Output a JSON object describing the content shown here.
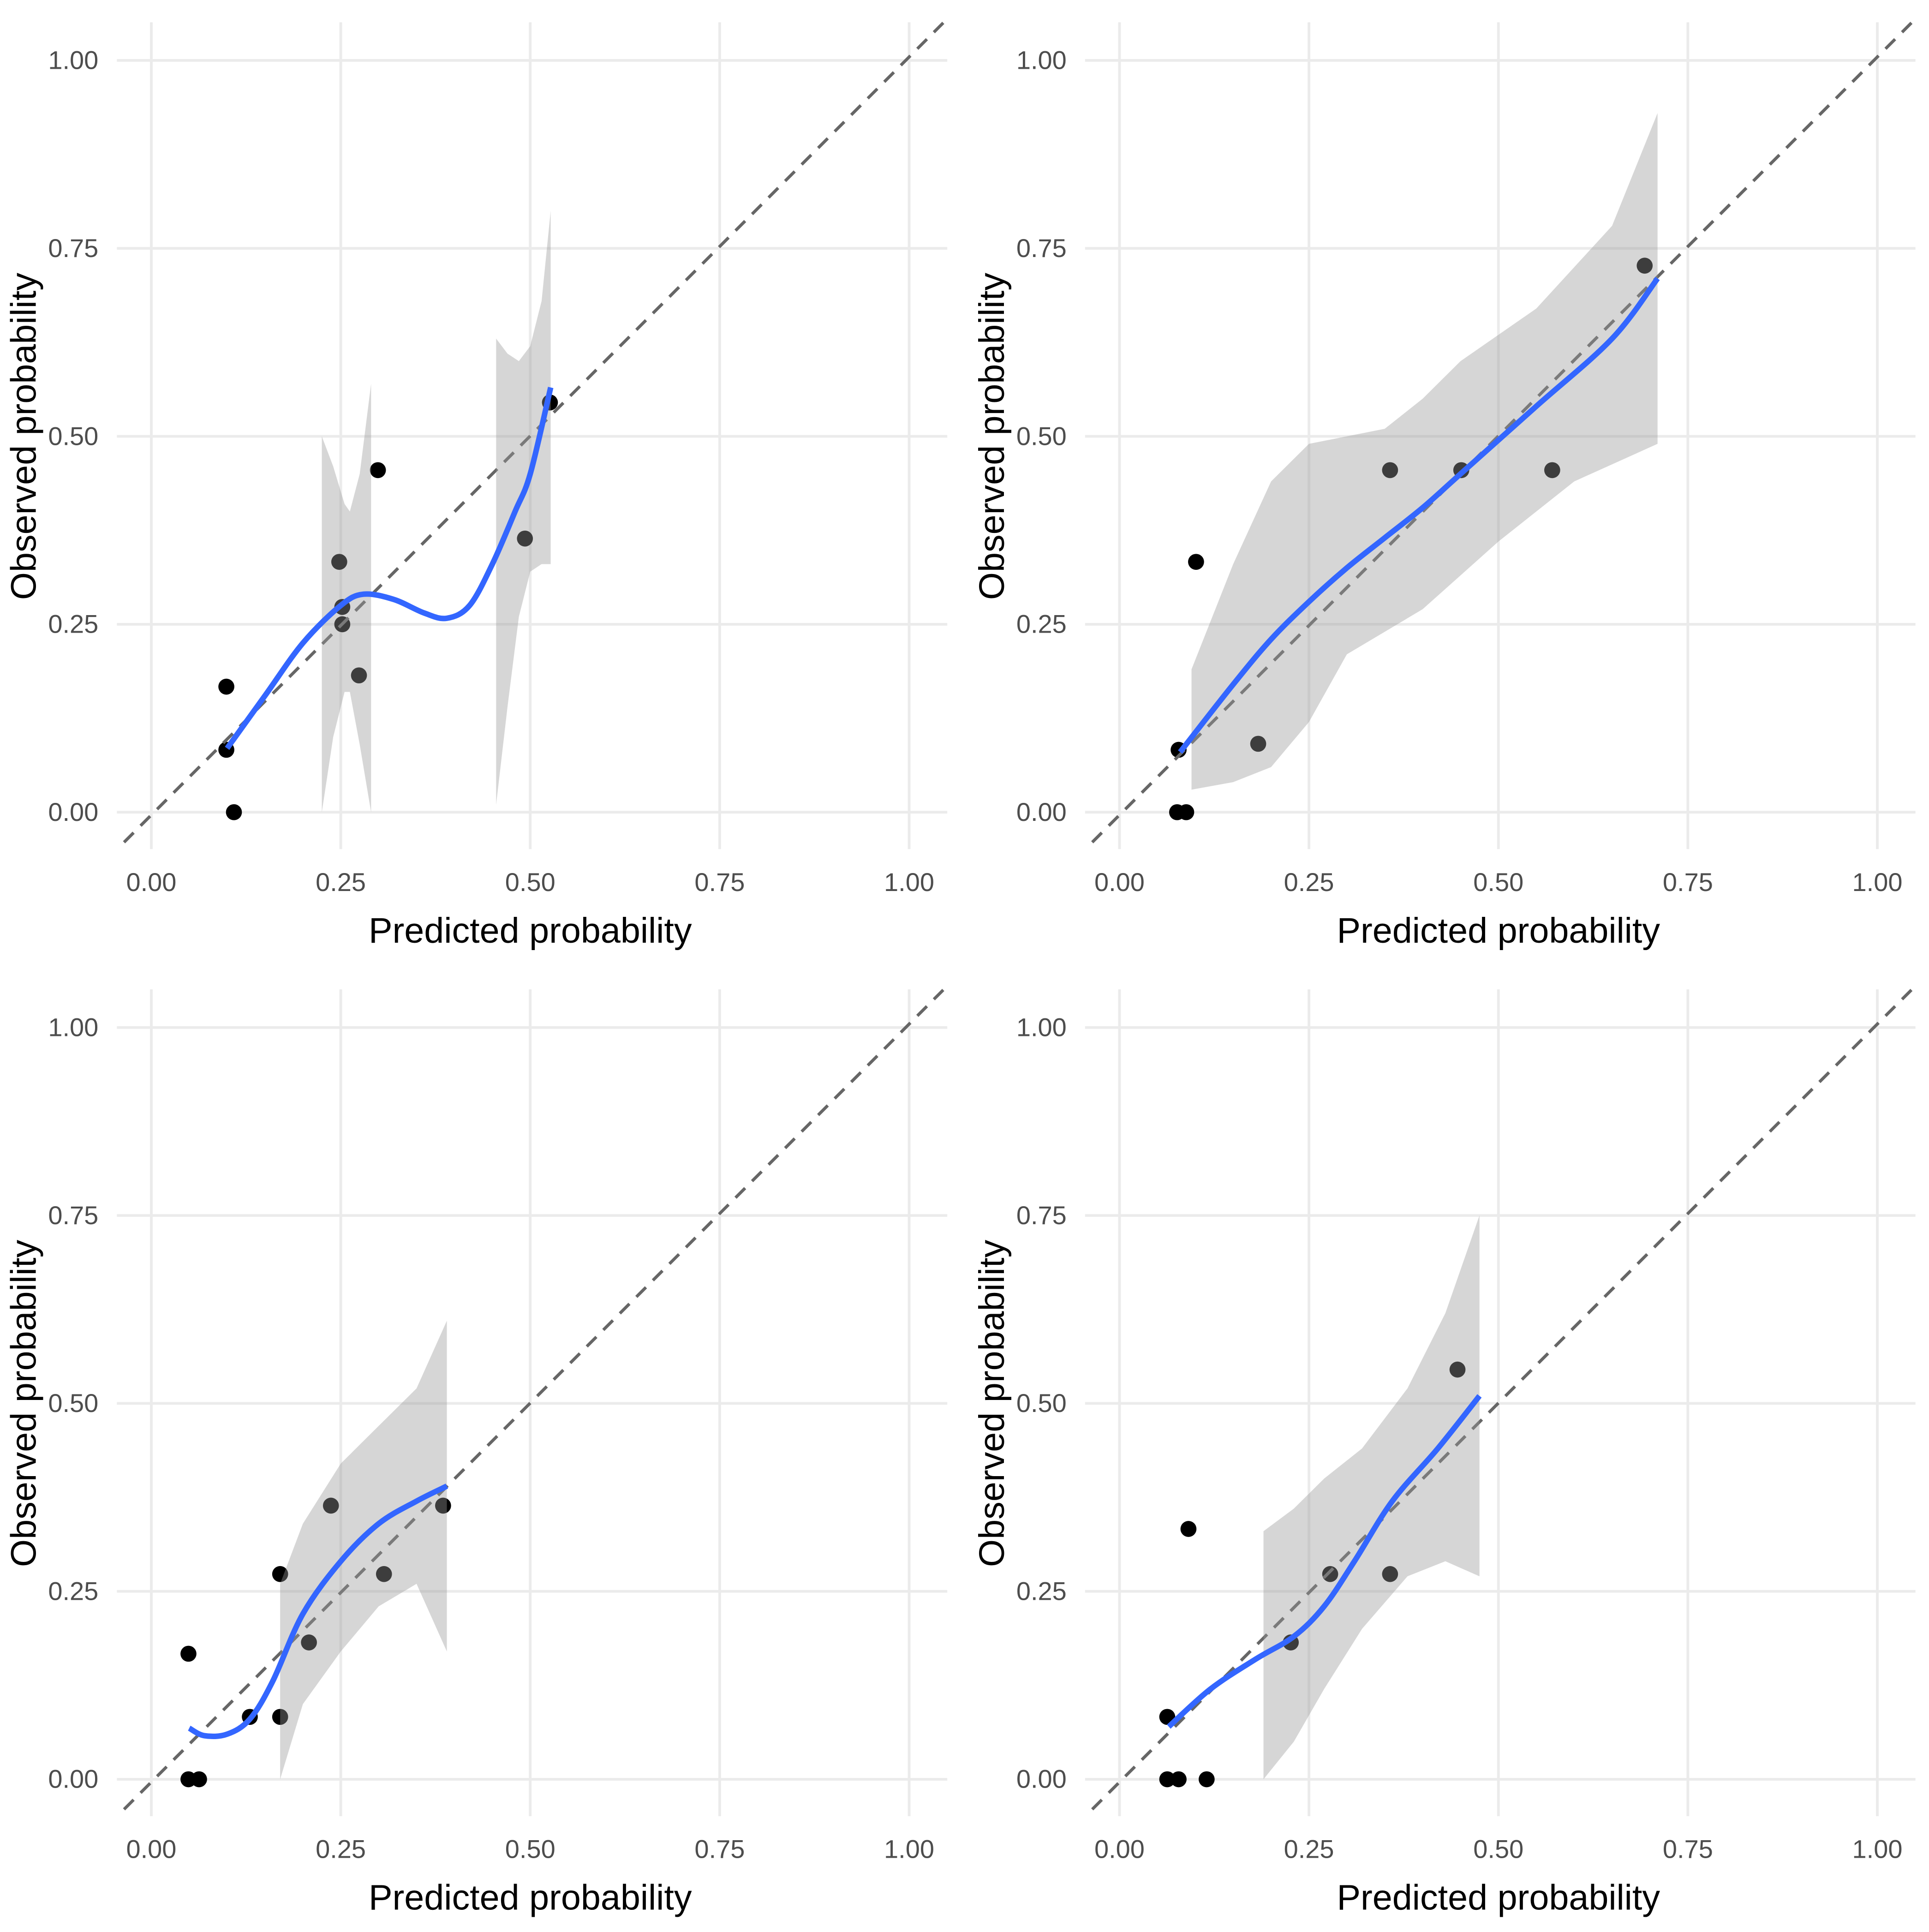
{
  "chart_data": [
    {
      "type": "scatter",
      "xlabel": "Predicted probability",
      "ylabel": "Observed probability",
      "xlim": [
        0,
        1
      ],
      "ylim": [
        0,
        1
      ],
      "xticks": [
        "0.00",
        "0.25",
        "0.50",
        "0.75",
        "1.00"
      ],
      "yticks": [
        "0.00",
        "0.25",
        "0.50",
        "0.75",
        "1.00"
      ],
      "grid": true,
      "reference_line": "y = x (dashed)",
      "points": [
        [
          0.099,
          0.167
        ],
        [
          0.099,
          0.083
        ],
        [
          0.109,
          0.0
        ],
        [
          0.248,
          0.333
        ],
        [
          0.252,
          0.273
        ],
        [
          0.252,
          0.25
        ],
        [
          0.274,
          0.182
        ],
        [
          0.299,
          0.455
        ],
        [
          0.493,
          0.364
        ],
        [
          0.526,
          0.545
        ]
      ],
      "smooth": [
        [
          0.1,
          0.085
        ],
        [
          0.15,
          0.155
        ],
        [
          0.2,
          0.225
        ],
        [
          0.25,
          0.275
        ],
        [
          0.28,
          0.29
        ],
        [
          0.32,
          0.283
        ],
        [
          0.36,
          0.265
        ],
        [
          0.39,
          0.258
        ],
        [
          0.42,
          0.275
        ],
        [
          0.45,
          0.33
        ],
        [
          0.48,
          0.4
        ],
        [
          0.5,
          0.45
        ],
        [
          0.527,
          0.565
        ]
      ],
      "bands": [
        {
          "upper": [
            [
              0.225,
              0.5
            ],
            [
              0.24,
              0.46
            ],
            [
              0.255,
              0.41
            ],
            [
              0.262,
              0.4
            ],
            [
              0.275,
              0.45
            ],
            [
              0.29,
              0.57
            ]
          ],
          "lower": [
            [
              0.225,
              0.0
            ],
            [
              0.24,
              0.1
            ],
            [
              0.255,
              0.16
            ],
            [
              0.262,
              0.16
            ],
            [
              0.275,
              0.09
            ],
            [
              0.29,
              0.0
            ]
          ]
        },
        {
          "upper": [
            [
              0.455,
              0.63
            ],
            [
              0.47,
              0.61
            ],
            [
              0.485,
              0.6
            ],
            [
              0.5,
              0.62
            ],
            [
              0.515,
              0.68
            ],
            [
              0.527,
              0.8
            ]
          ],
          "lower": [
            [
              0.455,
              0.01
            ],
            [
              0.47,
              0.14
            ],
            [
              0.485,
              0.26
            ],
            [
              0.5,
              0.32
            ],
            [
              0.515,
              0.33
            ],
            [
              0.527,
              0.33
            ]
          ]
        }
      ]
    },
    {
      "type": "scatter",
      "xlabel": "Predicted probability",
      "ylabel": "Observed probability",
      "xlim": [
        0,
        1
      ],
      "ylim": [
        0,
        1
      ],
      "xticks": [
        "0.00",
        "0.25",
        "0.50",
        "0.75",
        "1.00"
      ],
      "yticks": [
        "0.00",
        "0.25",
        "0.50",
        "0.75",
        "1.00"
      ],
      "grid": true,
      "reference_line": "y = x (dashed)",
      "points": [
        [
          0.078,
          0.083
        ],
        [
          0.076,
          0.0
        ],
        [
          0.088,
          0.0
        ],
        [
          0.101,
          0.333
        ],
        [
          0.183,
          0.091
        ],
        [
          0.357,
          0.455
        ],
        [
          0.451,
          0.455
        ],
        [
          0.571,
          0.455
        ],
        [
          0.693,
          0.727
        ]
      ],
      "smooth": [
        [
          0.08,
          0.08
        ],
        [
          0.15,
          0.17
        ],
        [
          0.2,
          0.23
        ],
        [
          0.25,
          0.28
        ],
        [
          0.3,
          0.325
        ],
        [
          0.35,
          0.365
        ],
        [
          0.4,
          0.405
        ],
        [
          0.45,
          0.45
        ],
        [
          0.55,
          0.54
        ],
        [
          0.65,
          0.63
        ],
        [
          0.71,
          0.71
        ]
      ],
      "bands": [
        {
          "upper": [
            [
              0.095,
              0.19
            ],
            [
              0.15,
              0.33
            ],
            [
              0.2,
              0.44
            ],
            [
              0.25,
              0.49
            ],
            [
              0.3,
              0.5
            ],
            [
              0.35,
              0.51
            ],
            [
              0.4,
              0.55
            ],
            [
              0.45,
              0.6
            ],
            [
              0.55,
              0.67
            ],
            [
              0.65,
              0.78
            ],
            [
              0.71,
              0.93
            ]
          ],
          "lower": [
            [
              0.095,
              0.03
            ],
            [
              0.15,
              0.04
            ],
            [
              0.2,
              0.06
            ],
            [
              0.25,
              0.12
            ],
            [
              0.3,
              0.21
            ],
            [
              0.4,
              0.27
            ],
            [
              0.5,
              0.36
            ],
            [
              0.6,
              0.44
            ],
            [
              0.71,
              0.49
            ]
          ]
        }
      ]
    },
    {
      "type": "scatter",
      "xlabel": "Predicted probability",
      "ylabel": "Observed probability",
      "xlim": [
        0,
        1
      ],
      "ylim": [
        0,
        1
      ],
      "xticks": [
        "0.00",
        "0.25",
        "0.50",
        "0.75",
        "1.00"
      ],
      "yticks": [
        "0.00",
        "0.25",
        "0.50",
        "0.75",
        "1.00"
      ],
      "grid": true,
      "reference_line": "y = x (dashed)",
      "points": [
        [
          0.049,
          0.167
        ],
        [
          0.049,
          0.0
        ],
        [
          0.063,
          0.0
        ],
        [
          0.13,
          0.083
        ],
        [
          0.17,
          0.273
        ],
        [
          0.17,
          0.083
        ],
        [
          0.208,
          0.182
        ],
        [
          0.237,
          0.364
        ],
        [
          0.307,
          0.273
        ],
        [
          0.385,
          0.364
        ]
      ],
      "smooth": [
        [
          0.05,
          0.068
        ],
        [
          0.07,
          0.058
        ],
        [
          0.1,
          0.06
        ],
        [
          0.13,
          0.08
        ],
        [
          0.16,
          0.13
        ],
        [
          0.2,
          0.22
        ],
        [
          0.25,
          0.29
        ],
        [
          0.3,
          0.34
        ],
        [
          0.35,
          0.37
        ],
        [
          0.39,
          0.39
        ]
      ],
      "bands": [
        {
          "upper": [
            [
              0.17,
              0.26
            ],
            [
              0.2,
              0.34
            ],
            [
              0.25,
              0.42
            ],
            [
              0.3,
              0.47
            ],
            [
              0.35,
              0.52
            ],
            [
              0.39,
              0.61
            ]
          ],
          "lower": [
            [
              0.17,
              0.0
            ],
            [
              0.2,
              0.1
            ],
            [
              0.25,
              0.17
            ],
            [
              0.3,
              0.23
            ],
            [
              0.35,
              0.26
            ],
            [
              0.39,
              0.17
            ]
          ]
        }
      ]
    },
    {
      "type": "scatter",
      "xlabel": "Predicted probability",
      "ylabel": "Observed probability",
      "xlim": [
        0,
        1
      ],
      "ylim": [
        0,
        1
      ],
      "xticks": [
        "0.00",
        "0.25",
        "0.50",
        "0.75",
        "1.00"
      ],
      "yticks": [
        "0.00",
        "0.25",
        "0.50",
        "0.75",
        "1.00"
      ],
      "grid": true,
      "reference_line": "y = x (dashed)",
      "points": [
        [
          0.063,
          0.083
        ],
        [
          0.063,
          0.0
        ],
        [
          0.078,
          0.0
        ],
        [
          0.091,
          0.333
        ],
        [
          0.115,
          0.0
        ],
        [
          0.226,
          0.182
        ],
        [
          0.278,
          0.273
        ],
        [
          0.357,
          0.273
        ],
        [
          0.446,
          0.545
        ]
      ],
      "smooth": [
        [
          0.065,
          0.07
        ],
        [
          0.12,
          0.12
        ],
        [
          0.18,
          0.16
        ],
        [
          0.23,
          0.19
        ],
        [
          0.27,
          0.23
        ],
        [
          0.31,
          0.29
        ],
        [
          0.36,
          0.37
        ],
        [
          0.42,
          0.44
        ],
        [
          0.475,
          0.51
        ]
      ],
      "bands": [
        {
          "upper": [
            [
              0.19,
              0.33
            ],
            [
              0.23,
              0.36
            ],
            [
              0.27,
              0.4
            ],
            [
              0.32,
              0.44
            ],
            [
              0.38,
              0.52
            ],
            [
              0.43,
              0.62
            ],
            [
              0.475,
              0.75
            ]
          ],
          "lower": [
            [
              0.19,
              0.0
            ],
            [
              0.23,
              0.05
            ],
            [
              0.27,
              0.12
            ],
            [
              0.32,
              0.2
            ],
            [
              0.38,
              0.27
            ],
            [
              0.43,
              0.29
            ],
            [
              0.475,
              0.27
            ]
          ]
        }
      ]
    }
  ],
  "colors": {
    "smooth": "#3366ff",
    "band": "#999999",
    "points": "#000000",
    "grid": "#ebebeb",
    "reference": "#666666"
  }
}
